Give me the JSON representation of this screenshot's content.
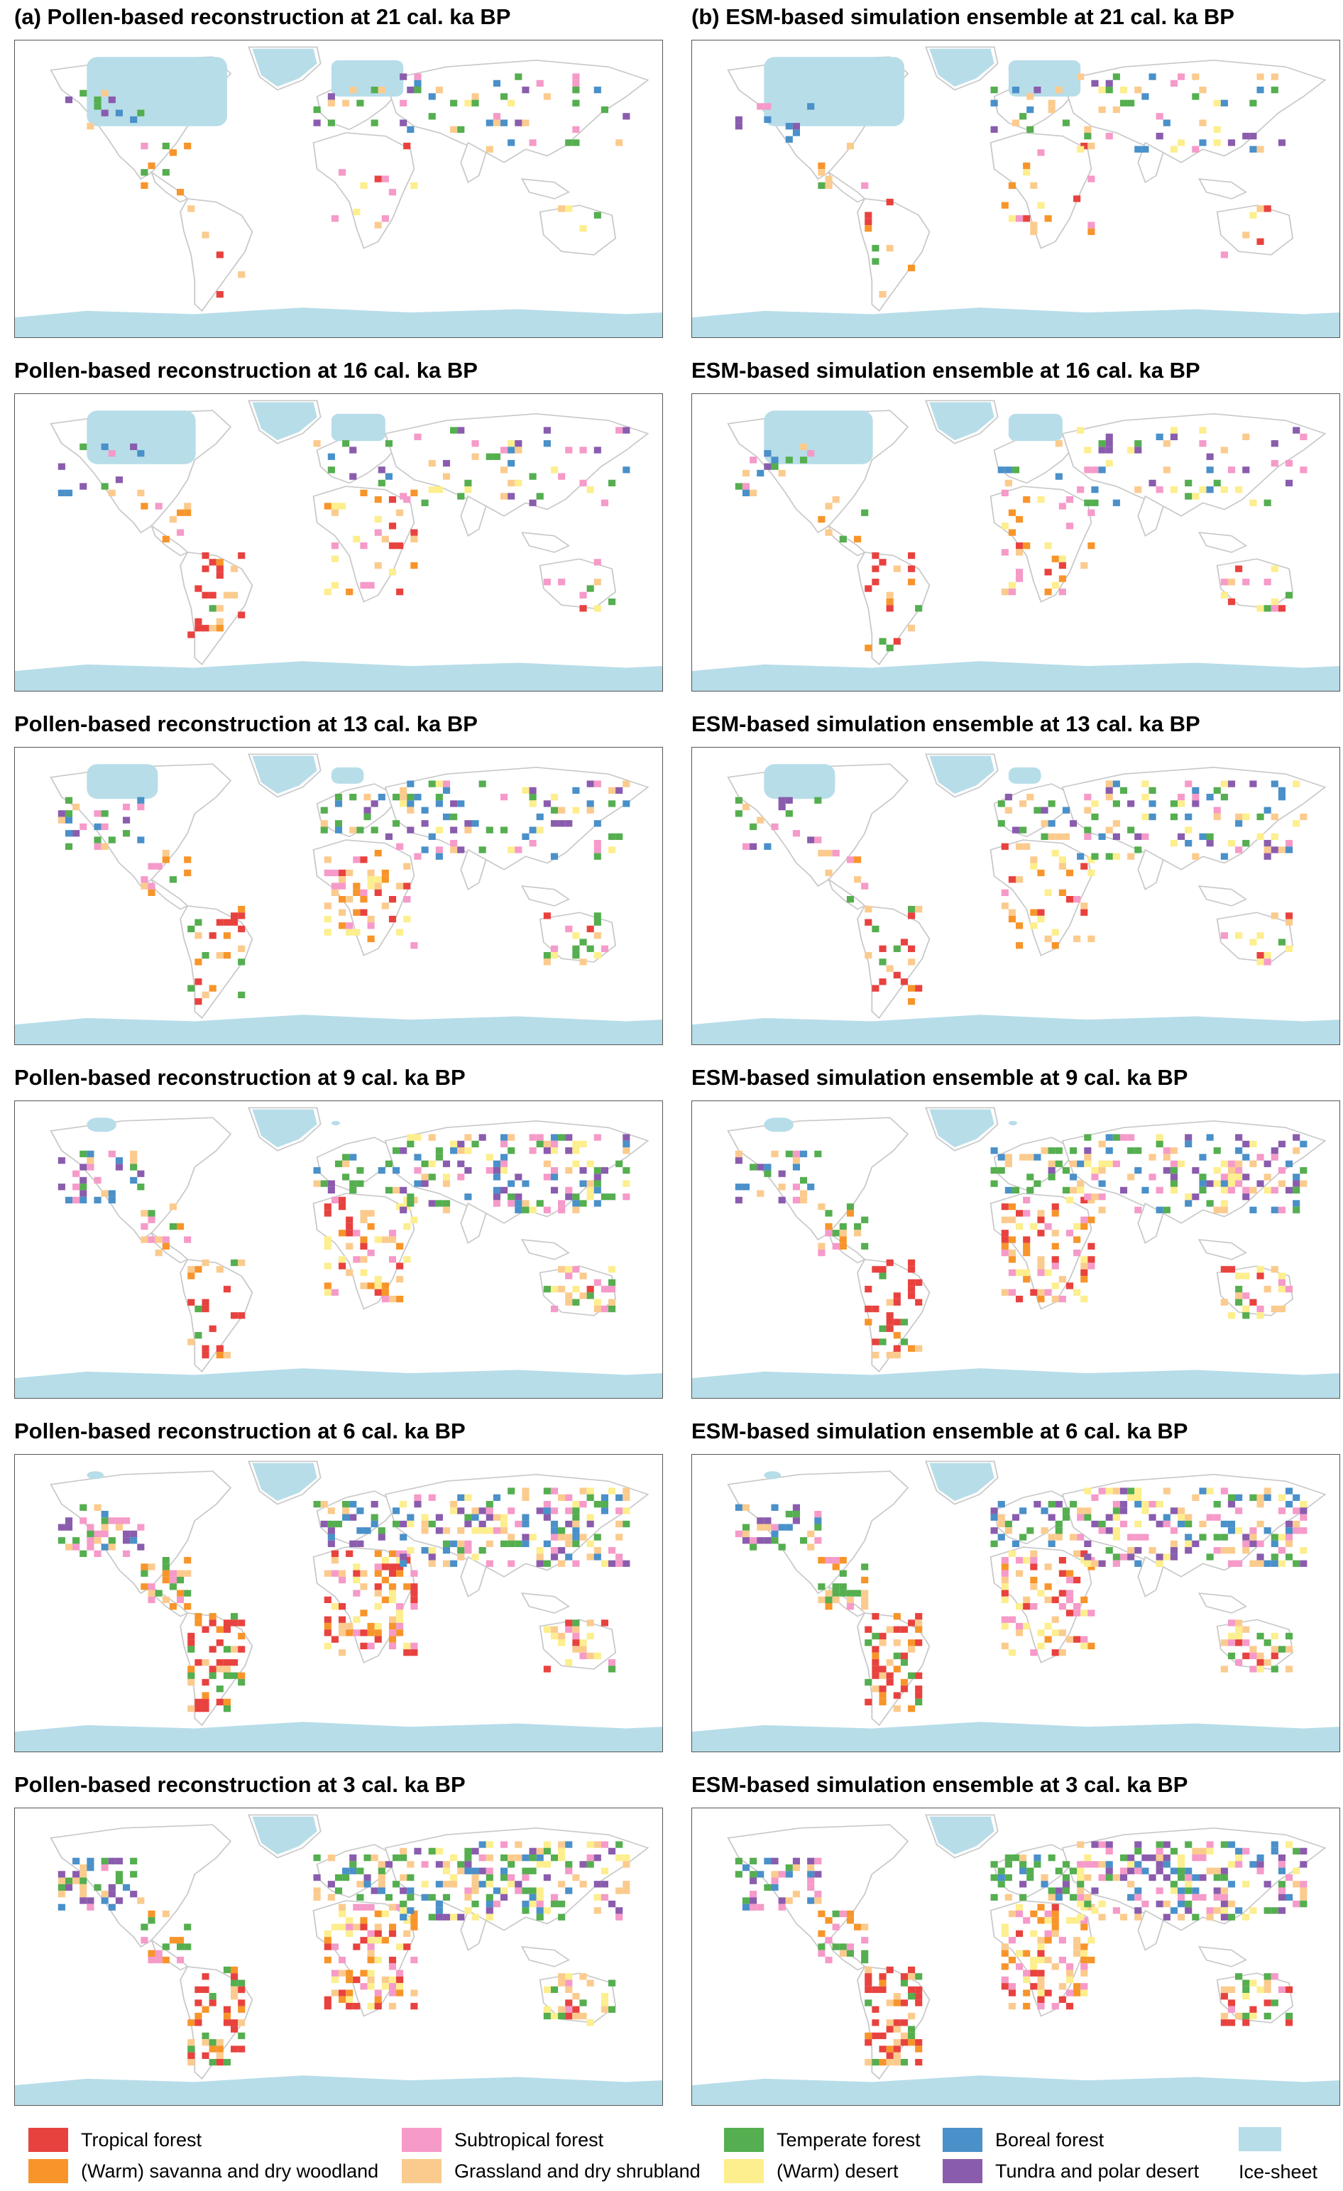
{
  "figure": {
    "rows": [
      {
        "left_title": "(a) Pollen-based reconstruction at 21 cal. ka BP",
        "right_title": "(b) ESM-based simulation ensemble at 21 cal. ka BP"
      },
      {
        "left_title": "Pollen-based reconstruction at 16 cal. ka BP",
        "right_title": "ESM-based simulation ensemble at 16 cal. ka BP"
      },
      {
        "left_title": "Pollen-based reconstruction at 13 cal. ka BP",
        "right_title": "ESM-based simulation ensemble at 13 cal. ka BP"
      },
      {
        "left_title": "Pollen-based reconstruction at 9 cal. ka BP",
        "right_title": "ESM-based simulation ensemble at 9 cal. ka BP"
      },
      {
        "left_title": "Pollen-based reconstruction at 6 cal. ka BP",
        "right_title": "ESM-based simulation ensemble at 6 cal. ka BP"
      },
      {
        "left_title": "Pollen-based reconstruction at 3 cal. ka BP",
        "right_title": "ESM-based simulation ensemble at 3 cal. ka BP"
      }
    ]
  },
  "legend": {
    "items": [
      {
        "label": "Tropical forest",
        "color": "#e8423f"
      },
      {
        "label": "(Warm) savanna and dry woodland",
        "color": "#f7952b"
      },
      {
        "label": "Subtropical forest",
        "color": "#f59ac9"
      },
      {
        "label": "Grassland and dry shrubland",
        "color": "#fbcb8e"
      },
      {
        "label": "Temperate forest",
        "color": "#55ae4f"
      },
      {
        "label": "(Warm) desert",
        "color": "#fdee8e"
      },
      {
        "label": "Boreal forest",
        "color": "#4a90c9"
      },
      {
        "label": "Tundra and polar desert",
        "color": "#8a5cad"
      }
    ],
    "ice_sheet": {
      "label": "Ice-sheet",
      "color": "#b7dde9"
    }
  },
  "map_style": {
    "coastline": "#c8c8c8",
    "ice": "#b7dde9",
    "frame": "#555555"
  }
}
